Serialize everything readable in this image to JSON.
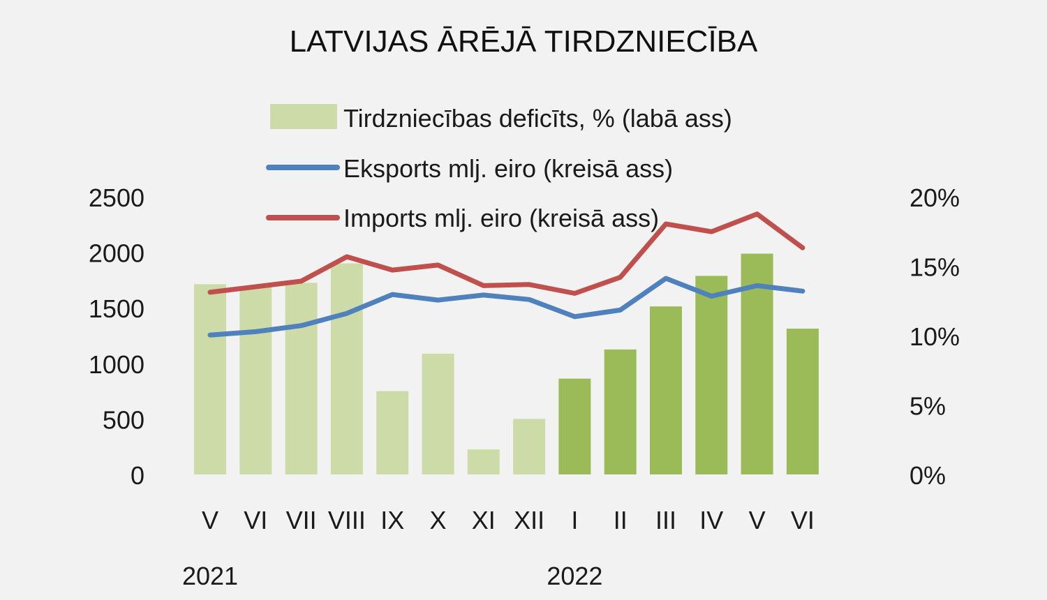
{
  "chart_data": {
    "type": "bar",
    "title": "LATVIJAS ĀRĒJĀ TIRDZNIECĪBA",
    "categories": [
      "V",
      "VI",
      "VII",
      "VIII",
      "IX",
      "X",
      "XI",
      "XII",
      "I",
      "II",
      "III",
      "IV",
      "V",
      "VI"
    ],
    "years": [
      {
        "label": "2021",
        "start_index": 0
      },
      {
        "label": "2022",
        "start_index": 8
      }
    ],
    "series": [
      {
        "name": "Tirdzniecības deficīts, % (labā ass)",
        "type": "bar",
        "axis": "right",
        "values": [
          13.7,
          13.5,
          13.8,
          15.2,
          6.0,
          8.7,
          1.8,
          4.0,
          6.9,
          9.0,
          12.1,
          14.3,
          15.9,
          10.5
        ],
        "colors": [
          "#cddba8",
          "#cddba8",
          "#cddba8",
          "#cddba8",
          "#cddba8",
          "#cddba8",
          "#cddba8",
          "#cddba8",
          "#9bbb59",
          "#9bbb59",
          "#9bbb59",
          "#9bbb59",
          "#9bbb59",
          "#9bbb59"
        ]
      },
      {
        "name": "Eksports mlj. eiro (kreisā ass)",
        "type": "line",
        "axis": "left",
        "color": "#4f81bd",
        "values": [
          1255,
          1285,
          1340,
          1450,
          1620,
          1570,
          1615,
          1575,
          1420,
          1480,
          1765,
          1605,
          1700,
          1650
        ]
      },
      {
        "name": "Imports mlj. eiro (kreisā ass)",
        "type": "line",
        "axis": "left",
        "color": "#c0504d",
        "values": [
          1640,
          1690,
          1740,
          1960,
          1840,
          1885,
          1700,
          1710,
          1630,
          1775,
          2255,
          2185,
          2345,
          2040
        ]
      }
    ],
    "y_left": {
      "min": 0,
      "max": 2500,
      "ticks": [
        "0",
        "500",
        "1000",
        "1500",
        "2000",
        "2500"
      ]
    },
    "y_right": {
      "min": 0,
      "max": 20,
      "ticks": [
        "0%",
        "5%",
        "10%",
        "15%",
        "20%"
      ]
    },
    "grid": false,
    "legend_position": "top"
  }
}
